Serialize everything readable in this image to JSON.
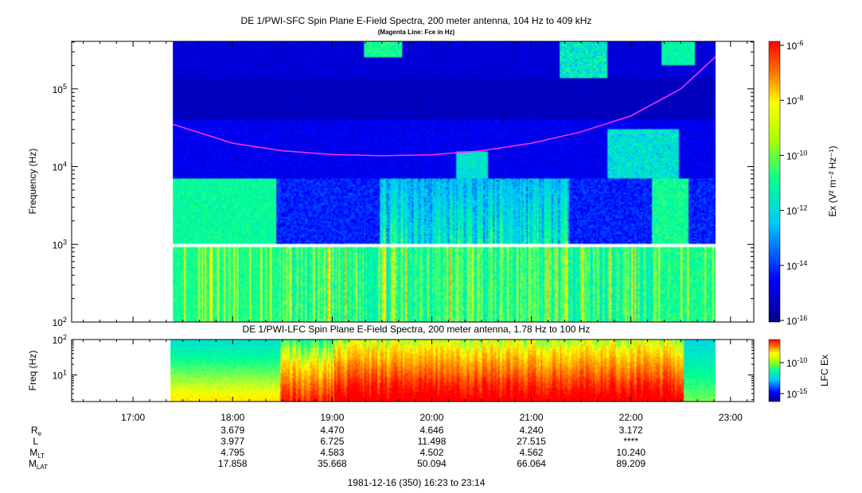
{
  "top_panel": {
    "title": "DE 1/PWI-SFC  Spin Plane E-Field Spectra, 200 meter antenna, 104 Hz to 409 kHz",
    "subtitle": "(Magenta Line: Fce in Hz)",
    "ylabel": "Frequency (Hz)",
    "yticks": [
      {
        "base": "10",
        "exp": "2"
      },
      {
        "base": "10",
        "exp": "3"
      },
      {
        "base": "10",
        "exp": "4"
      },
      {
        "base": "10",
        "exp": "5"
      }
    ],
    "colorbar_label": "Ex (V² m⁻² Hz⁻¹)",
    "colorbar_ticks": [
      {
        "base": "10",
        "exp": "-6"
      },
      {
        "base": "10",
        "exp": "-8"
      },
      {
        "base": "10",
        "exp": "-10"
      },
      {
        "base": "10",
        "exp": "-12"
      },
      {
        "base": "10",
        "exp": "-14"
      },
      {
        "base": "10",
        "exp": "-16"
      }
    ]
  },
  "bottom_panel": {
    "title": "DE 1/PWI-LFC  Spin Plane E-Field Spectra, 200 meter antenna, 1.78 Hz to 100 Hz",
    "ylabel": "Freq (Hz)",
    "yticks": [
      {
        "base": "10",
        "exp": "1"
      },
      {
        "base": "10",
        "exp": "2"
      }
    ],
    "colorbar_label": "LFC Ex",
    "colorbar_ticks": [
      {
        "base": "10",
        "exp": "-10"
      },
      {
        "base": "10",
        "exp": "-15"
      }
    ]
  },
  "x_ticks": [
    "17:00",
    "18:00",
    "19:00",
    "20:00",
    "21:00",
    "22:00",
    "23:00"
  ],
  "ephemeris": {
    "rows": [
      {
        "label": "R",
        "sub": "e",
        "values": [
          "3.679",
          "4.470",
          "4.646",
          "4.240",
          "3.172"
        ]
      },
      {
        "label": "L",
        "sub": "",
        "values": [
          "3.977",
          "6.725",
          "11.498",
          "27.515",
          "****"
        ]
      },
      {
        "label": "M",
        "sub": "LT",
        "values": [
          "4.795",
          "4.583",
          "4.502",
          "4.562",
          "10.240"
        ]
      },
      {
        "label": "M",
        "sub": "LAT",
        "values": [
          "17.858",
          "35.668",
          "50.094",
          "66.064",
          "89.209"
        ]
      }
    ]
  },
  "footer": "1981-12-16 (350) 16:23 to 23:14",
  "chart_data": [
    {
      "type": "heatmap",
      "title": "DE 1/PWI-SFC  Spin Plane E-Field Spectra, 200 meter antenna, 104 Hz to 409 kHz",
      "subtitle": "(Magenta Line: Fce in Hz)",
      "xlabel": "",
      "ylabel": "Frequency (Hz)",
      "x_range": [
        "16:23",
        "23:14"
      ],
      "data_x_range": [
        "17:24",
        "22:51"
      ],
      "ylim": [
        100,
        409000
      ],
      "y_scale": "log",
      "color_label": "Ex (V² m⁻² Hz⁻¹)",
      "color_range": [
        1e-16,
        1e-06
      ],
      "color_scale": "log",
      "colormap": [
        "#00008b",
        "#0000ff",
        "#00c8ff",
        "#00ff96",
        "#ffff00",
        "#ff8000",
        "#ff0000"
      ],
      "gap_band_hz": [
        900,
        1000
      ],
      "overlay": {
        "name": "Fce",
        "color": "#ff33ff",
        "x": [
          "17:24",
          "18:00",
          "18:30",
          "19:00",
          "19:30",
          "20:00",
          "20:30",
          "21:00",
          "21:30",
          "22:00",
          "22:30",
          "22:51"
        ],
        "y": [
          35000,
          20000,
          16000,
          14300,
          13800,
          14200,
          16000,
          20000,
          28000,
          45000,
          100000,
          260000
        ]
      }
    },
    {
      "type": "heatmap",
      "title": "DE 1/PWI-LFC  Spin Plane E-Field Spectra, 200 meter antenna, 1.78 Hz to 100 Hz",
      "xlabel": "",
      "ylabel": "Freq (Hz)",
      "x_range": [
        "16:23",
        "23:14"
      ],
      "data_x_range": [
        "17:24",
        "22:51"
      ],
      "ylim": [
        1.78,
        100
      ],
      "y_scale": "log",
      "color_label": "LFC Ex",
      "color_range": [
        1e-17,
        1e-08
      ],
      "color_scale": "log",
      "colormap": [
        "#00008b",
        "#0000ff",
        "#00c8ff",
        "#00ff96",
        "#ffff00",
        "#ff8000",
        "#ff0000"
      ]
    }
  ]
}
